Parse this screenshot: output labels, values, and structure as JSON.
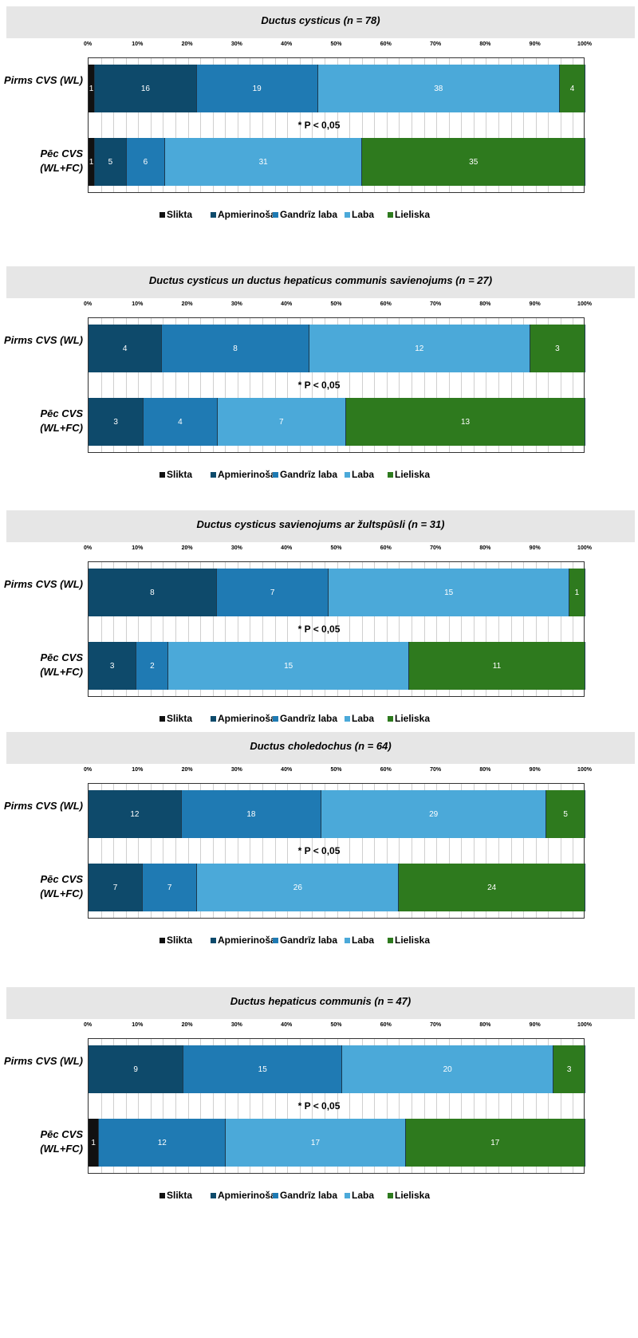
{
  "colors": {
    "slikta": "#111111",
    "apmierinosa": "#0e4a6b",
    "gandriz_laba": "#1f7ab3",
    "laba": "#4ba9d9",
    "lieliska": "#2e7a1e"
  },
  "axis": {
    "ticks": [
      "0%",
      "10%",
      "20%",
      "30%",
      "40%",
      "50%",
      "60%",
      "70%",
      "80%",
      "90%",
      "100%"
    ]
  },
  "legend": {
    "slikta": "Slikta",
    "apmierinosa": "Apmierinoša",
    "gandriz_laba": "Gandrīz laba",
    "laba": "Laba",
    "lieliska": "Lieliska"
  },
  "chart_data": [
    {
      "type": "bar",
      "orientation": "horizontal",
      "stacked": "percent",
      "title": "Ductus cysticus (n = 78)",
      "categories": [
        "Pirms CVS (WL)",
        "Pēc CVS (WL+FC)"
      ],
      "significance": "* P < 0,05",
      "series": [
        {
          "name": "Slikta",
          "values": [
            1,
            1
          ]
        },
        {
          "name": "Apmierinoša",
          "values": [
            16,
            5
          ]
        },
        {
          "name": "Gandrīz laba",
          "values": [
            19,
            6
          ]
        },
        {
          "name": "Laba",
          "values": [
            38,
            31
          ]
        },
        {
          "name": "Lieliska",
          "values": [
            4,
            35
          ]
        }
      ]
    },
    {
      "type": "bar",
      "orientation": "horizontal",
      "stacked": "percent",
      "title": "Ductus cysticus un ductus hepaticus communis savienojums (n = 27)",
      "categories": [
        "Pirms CVS (WL)",
        "Pēc CVS (WL+FC)"
      ],
      "significance": "* P < 0,05",
      "series": [
        {
          "name": "Slikta",
          "values": [
            0,
            0
          ]
        },
        {
          "name": "Apmierinoša",
          "values": [
            4,
            3
          ]
        },
        {
          "name": "Gandrīz laba",
          "values": [
            8,
            4
          ]
        },
        {
          "name": "Laba",
          "values": [
            12,
            7
          ]
        },
        {
          "name": "Lieliska",
          "values": [
            3,
            13
          ]
        }
      ]
    },
    {
      "type": "bar",
      "orientation": "horizontal",
      "stacked": "percent",
      "title": "Ductus cysticus savienojums ar žultspūsli (n = 31)",
      "categories": [
        "Pirms CVS (WL)",
        "Pēc CVS (WL+FC)"
      ],
      "significance": "* P < 0,05",
      "series": [
        {
          "name": "Slikta",
          "values": [
            0,
            0
          ]
        },
        {
          "name": "Apmierinoša",
          "values": [
            8,
            3
          ]
        },
        {
          "name": "Gandrīz laba",
          "values": [
            7,
            2
          ]
        },
        {
          "name": "Laba",
          "values": [
            15,
            15
          ]
        },
        {
          "name": "Lieliska",
          "values": [
            1,
            11
          ]
        }
      ]
    },
    {
      "type": "bar",
      "orientation": "horizontal",
      "stacked": "percent",
      "title": "Ductus choledochus (n = 64)",
      "categories": [
        "Pirms CVS (WL)",
        "Pēc CVS (WL+FC)"
      ],
      "significance": "* P < 0,05",
      "series": [
        {
          "name": "Slikta",
          "values": [
            0,
            0
          ]
        },
        {
          "name": "Apmierinoša",
          "values": [
            12,
            7
          ]
        },
        {
          "name": "Gandrīz laba",
          "values": [
            18,
            7
          ]
        },
        {
          "name": "Laba",
          "values": [
            29,
            26
          ]
        },
        {
          "name": "Lieliska",
          "values": [
            5,
            24
          ]
        }
      ]
    },
    {
      "type": "bar",
      "orientation": "horizontal",
      "stacked": "percent",
      "title": "Ductus hepaticus communis (n = 47)",
      "categories": [
        "Pirms CVS (WL)",
        "Pēc CVS (WL+FC)"
      ],
      "significance": "* P < 0,05",
      "series": [
        {
          "name": "Slikta",
          "values": [
            0,
            1
          ]
        },
        {
          "name": "Apmierinoša",
          "values": [
            9,
            0
          ]
        },
        {
          "name": "Gandrīz laba",
          "values": [
            15,
            12
          ]
        },
        {
          "name": "Laba",
          "values": [
            20,
            17
          ]
        },
        {
          "name": "Lieliska",
          "values": [
            3,
            17
          ]
        }
      ]
    }
  ]
}
